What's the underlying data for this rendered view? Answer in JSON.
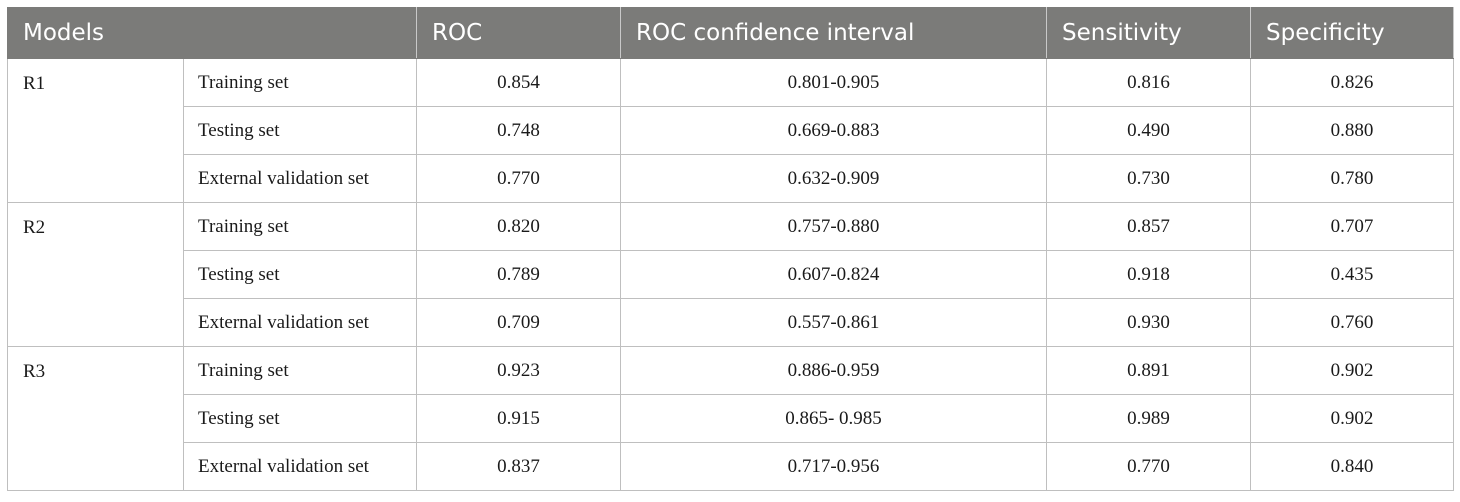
{
  "table": {
    "headers": [
      "Models",
      "ROC",
      "ROC confidence interval",
      "Sensitivity",
      "Specificity"
    ],
    "groups": [
      {
        "model": "R1",
        "rows": [
          {
            "dataset": "Training set",
            "roc": "0.854",
            "ci": "0.801-0.905",
            "sensitivity": "0.816",
            "specificity": "0.826"
          },
          {
            "dataset": "Testing set",
            "roc": "0.748",
            "ci": "0.669-0.883",
            "sensitivity": "0.490",
            "specificity": "0.880"
          },
          {
            "dataset": "External validation set",
            "roc": "0.770",
            "ci": "0.632-0.909",
            "sensitivity": "0.730",
            "specificity": "0.780"
          }
        ]
      },
      {
        "model": "R2",
        "rows": [
          {
            "dataset": "Training set",
            "roc": "0.820",
            "ci": "0.757-0.880",
            "sensitivity": "0.857",
            "specificity": "0.707"
          },
          {
            "dataset": "Testing set",
            "roc": "0.789",
            "ci": "0.607-0.824",
            "sensitivity": "0.918",
            "specificity": "0.435"
          },
          {
            "dataset": "External validation set",
            "roc": "0.709",
            "ci": "0.557-0.861",
            "sensitivity": "0.930",
            "specificity": "0.760"
          }
        ]
      },
      {
        "model": "R3",
        "rows": [
          {
            "dataset": "Training set",
            "roc": "0.923",
            "ci": "0.886-0.959",
            "sensitivity": "0.891",
            "specificity": "0.902"
          },
          {
            "dataset": "Testing set",
            "roc": "0.915",
            "ci": "0.865- 0.985",
            "sensitivity": "0.989",
            "specificity": "0.902"
          },
          {
            "dataset": "External validation set",
            "roc": "0.837",
            "ci": "0.717-0.956",
            "sensitivity": "0.770",
            "specificity": "0.840"
          }
        ]
      }
    ]
  },
  "colors": {
    "header_background": "#7b7b79",
    "header_text": "#ffffff",
    "border": "#bfbfbf",
    "body_text": "#1a1a1a"
  }
}
